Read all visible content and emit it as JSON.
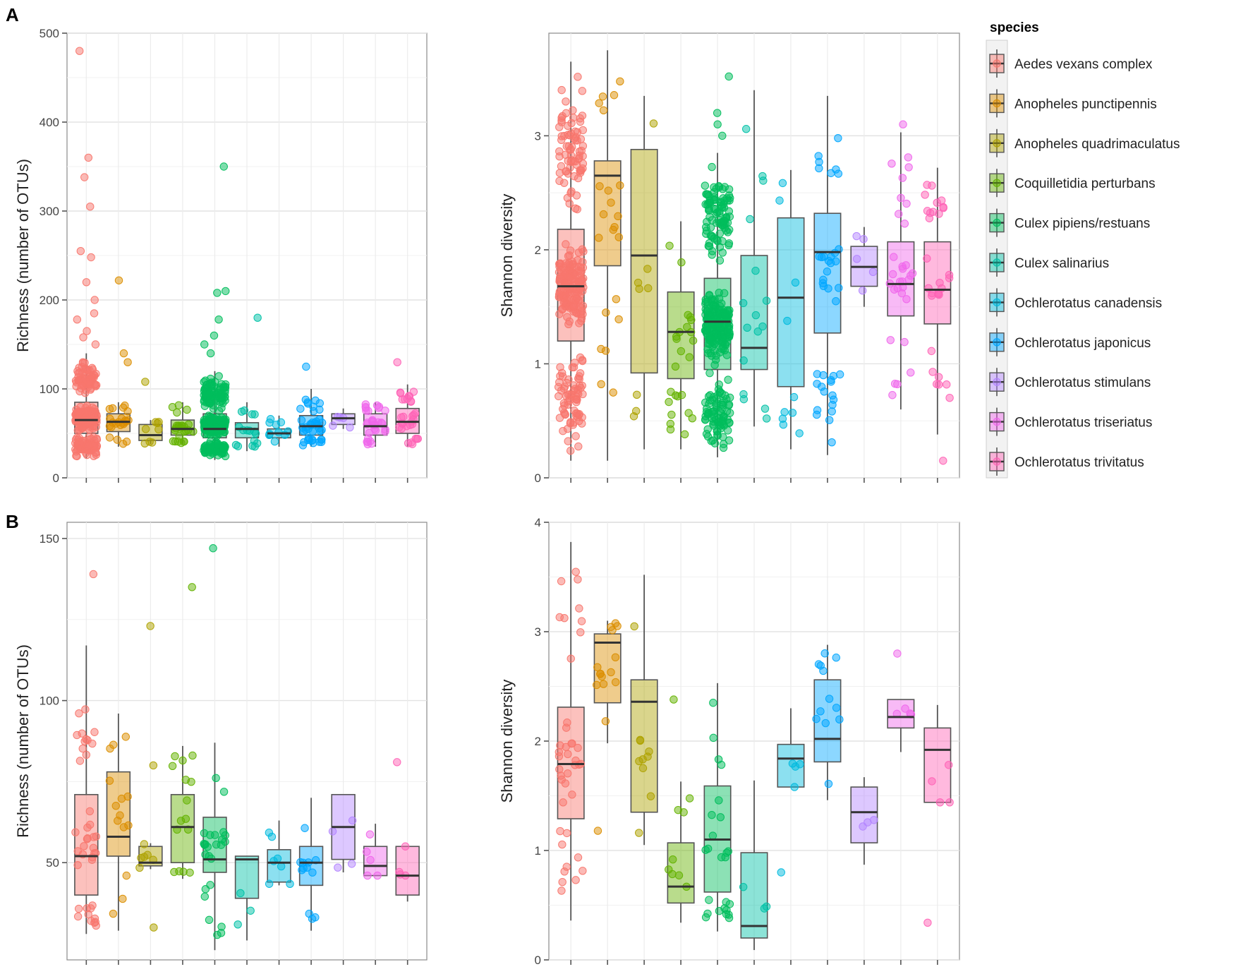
{
  "panel_labels": {
    "a": "A",
    "b": "B"
  },
  "legend": {
    "title": "species",
    "entries": [
      "Aedes vexans complex",
      "Anopheles punctipennis",
      "Anopheles quadrimaculatus",
      "Coquilletidia perturbans",
      "Culex pipiens/restuans",
      "Culex salinarius",
      "Ochlerotatus canadensis",
      "Ochlerotatus japonicus",
      "Ochlerotatus stimulans",
      "Ochlerotatus triseriatus",
      "Ochlerotatus trivitatus"
    ],
    "colors": [
      "#F8766D",
      "#DB8E00",
      "#AEA200",
      "#64B200",
      "#00BD5C",
      "#00C1A7",
      "#00BADE",
      "#00A6FF",
      "#B385FF",
      "#EF67EB",
      "#FF63B6"
    ]
  },
  "chart_data": [
    {
      "id": "A-richness",
      "type": "box",
      "title": "",
      "xlabel": "",
      "ylabel": "Richness (number of OTUs)",
      "ylim": [
        0,
        500
      ],
      "yticks": [
        0,
        100,
        200,
        300,
        400,
        500
      ],
      "boxes": [
        {
          "species": "Aedes vexans complex",
          "min": 22,
          "q1": 50,
          "median": 65,
          "q3": 85,
          "max": 140,
          "n_points": 300,
          "outliers": [
            150,
            158,
            165,
            178,
            185,
            200,
            220,
            248,
            255,
            305,
            338,
            360,
            480
          ]
        },
        {
          "species": "Anopheles punctipennis",
          "min": 35,
          "q1": 52,
          "median": 63,
          "q3": 72,
          "max": 85,
          "n_points": 22,
          "outliers": [
            130,
            140,
            222
          ]
        },
        {
          "species": "Anopheles quadrimaculatus",
          "min": 38,
          "q1": 42,
          "median": 48,
          "q3": 60,
          "max": 65,
          "n_points": 8,
          "outliers": [
            108
          ]
        },
        {
          "species": "Coquilletidia perturbans",
          "min": 38,
          "q1": 48,
          "median": 55,
          "q3": 65,
          "max": 85,
          "n_points": 25,
          "outliers": []
        },
        {
          "species": "Culex pipiens/restuans",
          "min": 20,
          "q1": 45,
          "median": 55,
          "q3": 72,
          "max": 120,
          "n_points": 350,
          "outliers": [
            140,
            150,
            160,
            178,
            210,
            208,
            350
          ]
        },
        {
          "species": "Culex salinarius",
          "min": 30,
          "q1": 45,
          "median": 55,
          "q3": 62,
          "max": 85,
          "n_points": 16,
          "outliers": [
            180
          ]
        },
        {
          "species": "Ochlerotatus canadensis",
          "min": 35,
          "q1": 45,
          "median": 50,
          "q3": 55,
          "max": 70,
          "n_points": 10,
          "outliers": []
        },
        {
          "species": "Ochlerotatus japonicus",
          "min": 35,
          "q1": 48,
          "median": 58,
          "q3": 70,
          "max": 100,
          "n_points": 40,
          "outliers": [
            125
          ]
        },
        {
          "species": "Ochlerotatus stimulans",
          "min": 55,
          "q1": 60,
          "median": 67,
          "q3": 72,
          "max": 78,
          "n_points": 5,
          "outliers": []
        },
        {
          "species": "Ochlerotatus triseriatus",
          "min": 35,
          "q1": 48,
          "median": 58,
          "q3": 72,
          "max": 85,
          "n_points": 30,
          "outliers": []
        },
        {
          "species": "Ochlerotatus trivitatus",
          "min": 35,
          "q1": 50,
          "median": 63,
          "q3": 78,
          "max": 105,
          "n_points": 30,
          "outliers": [
            130
          ]
        }
      ]
    },
    {
      "id": "A-shannon",
      "type": "box",
      "title": "",
      "xlabel": "",
      "ylabel": "Shannon diversity",
      "ylim": [
        0,
        3.9
      ],
      "yticks": [
        0,
        1,
        2,
        3
      ],
      "boxes": [
        {
          "species": "Aedes vexans complex",
          "min": 0.15,
          "q1": 1.2,
          "median": 1.68,
          "q3": 2.18,
          "max": 3.65,
          "n_points": 300,
          "outliers": []
        },
        {
          "species": "Anopheles punctipennis",
          "min": 0.15,
          "q1": 1.86,
          "median": 2.65,
          "q3": 2.78,
          "max": 3.75,
          "n_points": 22,
          "outliers": []
        },
        {
          "species": "Anopheles quadrimaculatus",
          "min": 0.25,
          "q1": 0.92,
          "median": 1.95,
          "q3": 2.88,
          "max": 3.35,
          "n_points": 8,
          "outliers": []
        },
        {
          "species": "Coquilletidia perturbans",
          "min": 0.25,
          "q1": 0.87,
          "median": 1.28,
          "q3": 1.63,
          "max": 2.25,
          "n_points": 25,
          "outliers": []
        },
        {
          "species": "Culex pipiens/restuans",
          "min": 0.18,
          "q1": 0.95,
          "median": 1.37,
          "q3": 1.75,
          "max": 2.85,
          "n_points": 350,
          "outliers": [
            3.0,
            3.1,
            3.2,
            3.52
          ]
        },
        {
          "species": "Culex salinarius",
          "min": 0.45,
          "q1": 0.95,
          "median": 1.14,
          "q3": 1.95,
          "max": 3.4,
          "n_points": 16,
          "outliers": []
        },
        {
          "species": "Ochlerotatus canadensis",
          "min": 0.25,
          "q1": 0.8,
          "median": 1.58,
          "q3": 2.28,
          "max": 2.7,
          "n_points": 10,
          "outliers": []
        },
        {
          "species": "Ochlerotatus japonicus",
          "min": 0.2,
          "q1": 1.27,
          "median": 1.98,
          "q3": 2.32,
          "max": 3.35,
          "n_points": 40,
          "outliers": []
        },
        {
          "species": "Ochlerotatus stimulans",
          "min": 1.5,
          "q1": 1.68,
          "median": 1.85,
          "q3": 2.03,
          "max": 2.2,
          "n_points": 5,
          "outliers": []
        },
        {
          "species": "Ochlerotatus triseriatus",
          "min": 0.6,
          "q1": 1.42,
          "median": 1.7,
          "q3": 2.07,
          "max": 3.03,
          "n_points": 30,
          "outliers": [
            3.1
          ]
        },
        {
          "species": "Ochlerotatus trivitatus",
          "min": 0.38,
          "q1": 1.35,
          "median": 1.65,
          "q3": 2.07,
          "max": 2.72,
          "n_points": 30,
          "outliers": [
            0.15
          ]
        }
      ]
    },
    {
      "id": "B-richness",
      "type": "box",
      "title": "",
      "xlabel": "",
      "ylabel": "Richness (number of OTUs)",
      "ylim": [
        20,
        155
      ],
      "yticks": [
        50,
        100,
        150
      ],
      "boxes": [
        {
          "species": "Aedes vexans complex",
          "min": 28,
          "q1": 40,
          "median": 52,
          "q3": 71,
          "max": 117,
          "n_points": 40,
          "outliers": [
            139
          ]
        },
        {
          "species": "Anopheles punctipennis",
          "min": 29,
          "q1": 52,
          "median": 58,
          "q3": 78,
          "max": 96,
          "n_points": 14,
          "outliers": []
        },
        {
          "species": "Anopheles quadrimaculatus",
          "min": 48,
          "q1": 49,
          "median": 50,
          "q3": 55,
          "max": 56,
          "n_points": 6,
          "outliers": [
            30,
            80,
            123
          ]
        },
        {
          "species": "Coquilletidia perturbans",
          "min": 45,
          "q1": 50,
          "median": 61,
          "q3": 71,
          "max": 86,
          "n_points": 15,
          "outliers": [
            135
          ]
        },
        {
          "species": "Culex pipiens/restuans",
          "min": 23,
          "q1": 47,
          "median": 51,
          "q3": 64,
          "max": 87,
          "n_points": 25,
          "outliers": [
            147
          ]
        },
        {
          "species": "Culex salinarius",
          "min": 26,
          "q1": 39,
          "median": 51,
          "q3": 52,
          "max": 52,
          "n_points": 3,
          "outliers": []
        },
        {
          "species": "Ochlerotatus canadensis",
          "min": 43,
          "q1": 44,
          "median": 50,
          "q3": 54,
          "max": 63,
          "n_points": 7,
          "outliers": []
        },
        {
          "species": "Ochlerotatus japonicus",
          "min": 29,
          "q1": 43,
          "median": 50,
          "q3": 55,
          "max": 70,
          "n_points": 12,
          "outliers": []
        },
        {
          "species": "Ochlerotatus stimulans",
          "min": 47,
          "q1": 51,
          "median": 61,
          "q3": 71,
          "max": 71,
          "n_points": 4,
          "outliers": []
        },
        {
          "species": "Ochlerotatus triseriatus",
          "min": 46,
          "q1": 46,
          "median": 49,
          "q3": 55,
          "max": 62,
          "n_points": 5,
          "outliers": []
        },
        {
          "species": "Ochlerotatus trivitatus",
          "min": 38,
          "q1": 40,
          "median": 46,
          "q3": 55,
          "max": 55,
          "n_points": 4,
          "outliers": [
            81
          ]
        }
      ]
    },
    {
      "id": "B-shannon",
      "type": "box",
      "title": "",
      "xlabel": "",
      "ylabel": "Shannon diversity",
      "ylim": [
        0,
        4
      ],
      "yticks": [
        0,
        1,
        2,
        3,
        4
      ],
      "boxes": [
        {
          "species": "Aedes vexans complex",
          "min": 0.36,
          "q1": 1.29,
          "median": 1.79,
          "q3": 2.31,
          "max": 3.82,
          "n_points": 40,
          "outliers": []
        },
        {
          "species": "Anopheles punctipennis",
          "min": 1.98,
          "q1": 2.35,
          "median": 2.9,
          "q3": 2.98,
          "max": 3.1,
          "n_points": 14,
          "outliers": [
            1.18
          ]
        },
        {
          "species": "Anopheles quadrimaculatus",
          "min": 1.05,
          "q1": 1.35,
          "median": 2.36,
          "q3": 2.56,
          "max": 3.52,
          "n_points": 10,
          "outliers": []
        },
        {
          "species": "Coquilletidia perturbans",
          "min": 0.34,
          "q1": 0.52,
          "median": 0.67,
          "q3": 1.07,
          "max": 1.63,
          "n_points": 8,
          "outliers": [
            2.38
          ]
        },
        {
          "species": "Culex pipiens/restuans",
          "min": 0.26,
          "q1": 0.62,
          "median": 1.1,
          "q3": 1.59,
          "max": 2.53,
          "n_points": 25,
          "outliers": []
        },
        {
          "species": "Culex salinarius",
          "min": 0.09,
          "q1": 0.2,
          "median": 0.31,
          "q3": 0.98,
          "max": 1.64,
          "n_points": 3,
          "outliers": []
        },
        {
          "species": "Ochlerotatus canadensis",
          "min": 1.58,
          "q1": 1.58,
          "median": 1.84,
          "q3": 1.97,
          "max": 2.3,
          "n_points": 4,
          "outliers": [
            0.8
          ]
        },
        {
          "species": "Ochlerotatus japonicus",
          "min": 1.46,
          "q1": 1.81,
          "median": 2.02,
          "q3": 2.56,
          "max": 2.88,
          "n_points": 12,
          "outliers": []
        },
        {
          "species": "Ochlerotatus stimulans",
          "min": 0.87,
          "q1": 1.07,
          "median": 1.35,
          "q3": 1.58,
          "max": 1.67,
          "n_points": 3,
          "outliers": []
        },
        {
          "species": "Ochlerotatus triseriatus",
          "min": 1.9,
          "q1": 2.12,
          "median": 2.22,
          "q3": 2.38,
          "max": 2.38,
          "n_points": 4,
          "outliers": [
            2.8
          ]
        },
        {
          "species": "Ochlerotatus trivitatus",
          "min": 1.44,
          "q1": 1.44,
          "median": 1.92,
          "q3": 2.12,
          "max": 2.33,
          "n_points": 4,
          "outliers": [
            0.34
          ]
        }
      ]
    }
  ]
}
